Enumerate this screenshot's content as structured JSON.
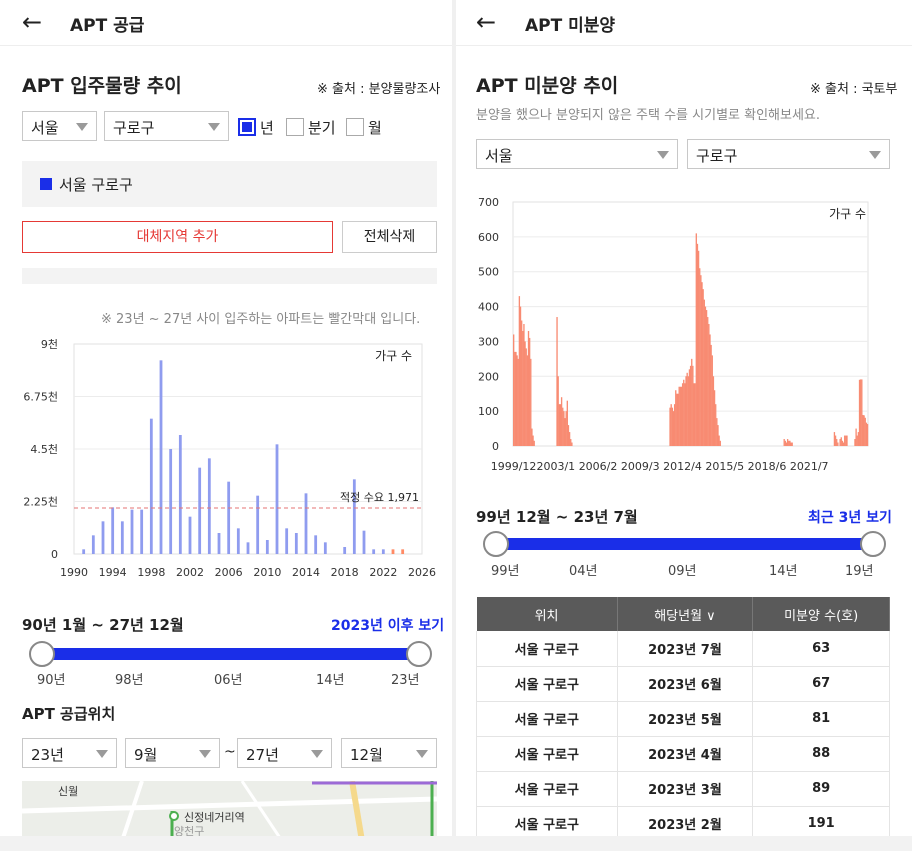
{
  "left": {
    "header": {
      "back": "←",
      "title": "APT 공급"
    },
    "section_title": "APT 입주물량 추이",
    "source": "※ 출처 : 분양물량조사",
    "filters": {
      "region": "서울",
      "district": "구로구",
      "period_options": [
        "년",
        "분기",
        "월"
      ],
      "period_selected": "년"
    },
    "selected_region": "서울 구로구",
    "add_button": "대체지역 추가",
    "clear_button": "전체삭제",
    "note": "※ 23년 ~ 27년 사이 입주하는 아파트는 빨간막대 입니다.",
    "range": {
      "label": "90년 1월 ~ 27년 12월",
      "link": "2023년 이후 보기",
      "ticks": [
        "90년",
        "98년",
        "06년",
        "14년",
        "23년"
      ],
      "start": 0,
      "end": 1
    },
    "location_title": "APT 공급위치",
    "location_filters": {
      "from_year": "23년",
      "from_month": "9월",
      "sep": "~",
      "to_year": "27년",
      "to_month": "12월"
    },
    "map_labels": [
      "신월",
      "신정네거리역",
      "양천구"
    ],
    "colors": {
      "accent": "#1a2ee8",
      "bar": "#8f9cef",
      "future": "#ff8a65",
      "line": "#e57373"
    }
  },
  "right": {
    "header": {
      "back": "←",
      "title": "APT 미분양"
    },
    "section_title": "APT 미분양 추이",
    "source": "※ 출처 : 국토부",
    "description": "분양을 했으나 분양되지 않은 주택 수를 시기별로 확인해보세요.",
    "filters": {
      "region": "서울",
      "district": "구로구"
    },
    "range": {
      "label": "99년 12월 ~ 23년 7월",
      "link": "최근 3년 보기",
      "ticks": [
        "99년",
        "04년",
        "09년",
        "14년",
        "19년"
      ],
      "start": 0,
      "end": 1
    },
    "table": {
      "headers": [
        "위치",
        "해당년월 ∨",
        "미분양 수(호)"
      ],
      "rows": [
        [
          "서울 구로구",
          "2023년 7월",
          "63"
        ],
        [
          "서울 구로구",
          "2023년 6월",
          "67"
        ],
        [
          "서울 구로구",
          "2023년 5월",
          "81"
        ],
        [
          "서울 구로구",
          "2023년 4월",
          "88"
        ],
        [
          "서울 구로구",
          "2023년 3월",
          "89"
        ],
        [
          "서울 구로구",
          "2023년 2월",
          "191"
        ]
      ]
    },
    "colors": {
      "bar": "#f88b72"
    }
  },
  "chart_data": [
    {
      "type": "bar",
      "unit_label": "가구 수",
      "x": [
        1991,
        1992,
        1993,
        1994,
        1995,
        1996,
        1997,
        1998,
        1999,
        2000,
        2001,
        2002,
        2003,
        2004,
        2005,
        2006,
        2007,
        2008,
        2009,
        2010,
        2011,
        2012,
        2013,
        2014,
        2015,
        2016,
        2017,
        2018,
        2019,
        2020,
        2021,
        2022,
        2023,
        2024
      ],
      "values": [
        200,
        800,
        1400,
        2000,
        1400,
        1900,
        1900,
        5800,
        8300,
        4500,
        5100,
        1600,
        3700,
        4100,
        900,
        3100,
        1100,
        500,
        2500,
        600,
        4700,
        1100,
        900,
        2600,
        800,
        500,
        0,
        300,
        3200,
        1000,
        200,
        200,
        200,
        200
      ],
      "future_from": 2023,
      "ylim": [
        0,
        9000
      ],
      "yticks": [
        "0",
        "2.25천",
        "4.5천",
        "6.75천",
        "9천"
      ],
      "xticks": [
        "1990",
        "1994",
        "1998",
        "2002",
        "2006",
        "2010",
        "2014",
        "2018",
        "2022",
        "2026"
      ],
      "reference_line": {
        "label": "적정 수요 1,971",
        "value": 1971
      }
    },
    {
      "type": "bar",
      "unit_label": "가구 수",
      "x_start": "1999/12",
      "ylim": [
        0,
        700
      ],
      "yticks": [
        "0",
        "100",
        "200",
        "300",
        "400",
        "500",
        "600",
        "700"
      ],
      "xticks": [
        "1999/12",
        "2003/1",
        "2006/2",
        "2009/3",
        "2012/4",
        "2015/5",
        "2018/6",
        "2021/7"
      ],
      "values": [
        320,
        270,
        270,
        260,
        250,
        430,
        400,
        360,
        330,
        350,
        300,
        280,
        260,
        330,
        310,
        250,
        50,
        30,
        15,
        0,
        0,
        0,
        0,
        0,
        0,
        0,
        0,
        0,
        0,
        0,
        0,
        0,
        0,
        0,
        0,
        0,
        0,
        0,
        370,
        200,
        120,
        120,
        140,
        110,
        100,
        80,
        100,
        130,
        60,
        40,
        20,
        10,
        0,
        0,
        0,
        0,
        0,
        0,
        0,
        0,
        0,
        0,
        0,
        0,
        0,
        0,
        0,
        0,
        0,
        0,
        0,
        0,
        0,
        0,
        0,
        0,
        0,
        0,
        0,
        0,
        0,
        0,
        0,
        0,
        0,
        0,
        0,
        0,
        0,
        0,
        0,
        0,
        0,
        0,
        0,
        0,
        0,
        0,
        0,
        0,
        0,
        0,
        0,
        0,
        0,
        0,
        0,
        0,
        0,
        0,
        0,
        0,
        0,
        0,
        0,
        0,
        0,
        0,
        0,
        0,
        0,
        0,
        0,
        0,
        0,
        0,
        0,
        0,
        0,
        0,
        0,
        0,
        0,
        0,
        0,
        0,
        0,
        110,
        120,
        110,
        100,
        120,
        160,
        150,
        150,
        170,
        170,
        170,
        180,
        190,
        180,
        200,
        210,
        200,
        220,
        230,
        250,
        230,
        180,
        180,
        610,
        580,
        560,
        510,
        490,
        470,
        450,
        420,
        400,
        390,
        370,
        350,
        320,
        290,
        260,
        200,
        160,
        120,
        80,
        60,
        30,
        15,
        0,
        0,
        0,
        0,
        0,
        0,
        0,
        0,
        0,
        0,
        0,
        0,
        0,
        0,
        0,
        0,
        0,
        0,
        0,
        0,
        0,
        0,
        0,
        0,
        0,
        0,
        0,
        0,
        0,
        0,
        0,
        0,
        0,
        0,
        0,
        0,
        0,
        0,
        0,
        0,
        0,
        0,
        0,
        0,
        0,
        0,
        0,
        0,
        0,
        0,
        0,
        0,
        0,
        0,
        0,
        20,
        15,
        10,
        20,
        15,
        15,
        10,
        10,
        0,
        0,
        0,
        0,
        0,
        0,
        0,
        0,
        0,
        0,
        0,
        0,
        0,
        0,
        0,
        0,
        0,
        0,
        0,
        0,
        0,
        0,
        0,
        0,
        0,
        0,
        0,
        0,
        0,
        0,
        0,
        0,
        0,
        0,
        0,
        0,
        40,
        30,
        20,
        10,
        0,
        20,
        25,
        15,
        10,
        30,
        30,
        30,
        0,
        0,
        0,
        0,
        0,
        0,
        20,
        50,
        30,
        40,
        190,
        191,
        191,
        89,
        88,
        81,
        67,
        63
      ]
    }
  ]
}
